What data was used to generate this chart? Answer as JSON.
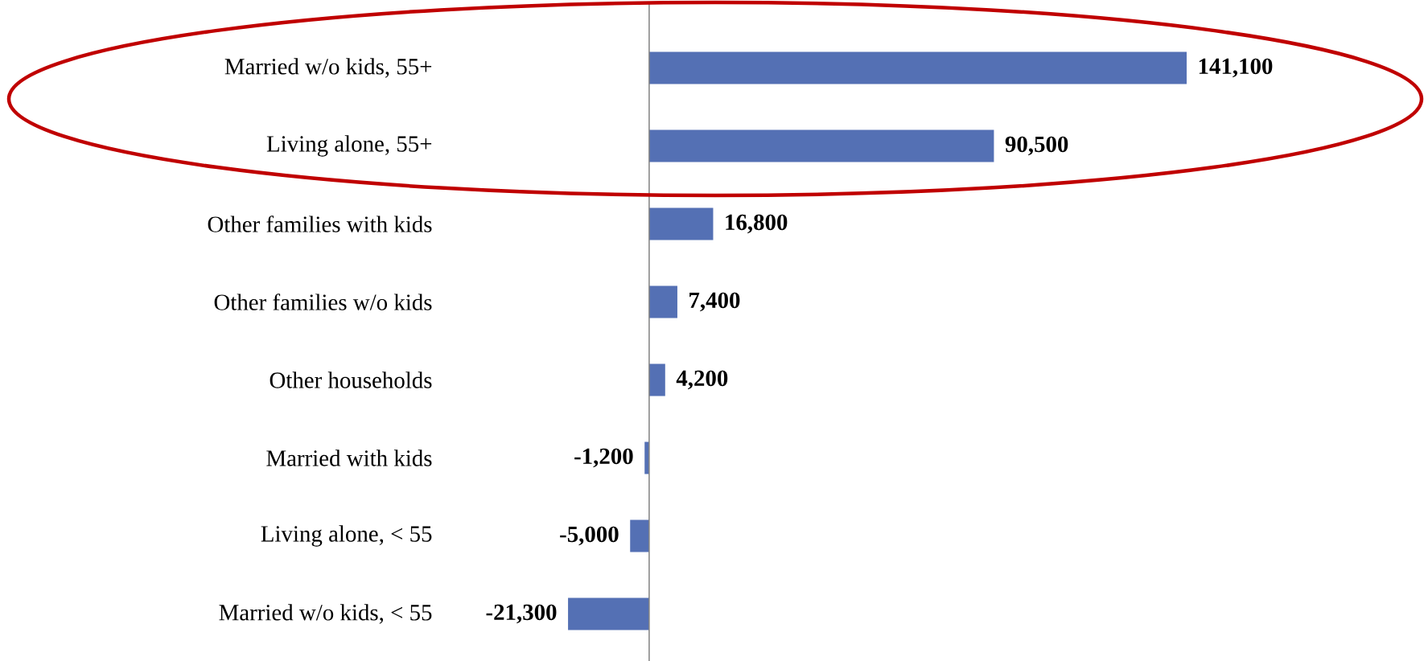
{
  "chart_data": {
    "type": "bar",
    "orientation": "horizontal",
    "categories": [
      "Married w/o kids, 55+",
      "Living alone, 55+",
      "Other families with kids",
      "Other families w/o kids",
      "Other households",
      "Married with kids",
      "Living alone, < 55",
      "Married w/o kids, < 55"
    ],
    "values": [
      141100,
      90500,
      16800,
      7400,
      4200,
      -1200,
      -5000,
      -21300
    ],
    "value_labels": [
      "141,100",
      "90,500",
      "16,800",
      "7,400",
      "4,200",
      "-1,200",
      "-5,000",
      "-21,300"
    ],
    "ref_lines": [
      {
        "axis": "x",
        "value": 0,
        "color": "#808080"
      }
    ],
    "color": "#5470b4"
  }
}
